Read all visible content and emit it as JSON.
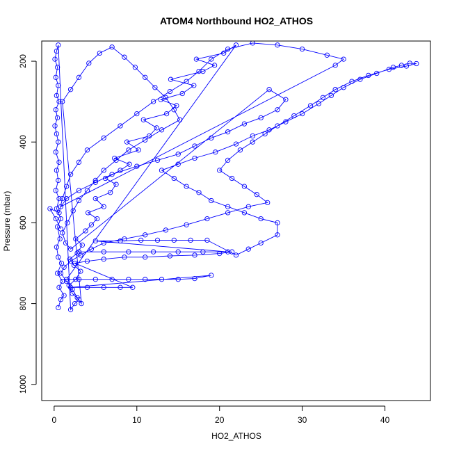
{
  "chart_data": {
    "type": "line",
    "title": "ATOM4 Northbound HO2_ATHOS",
    "xlabel": "HO2_ATHOS",
    "ylabel": "Pressure (mbar)",
    "xlim": [
      -1.5,
      45.5
    ],
    "ylim": [
      1040,
      150
    ],
    "y_reversed": true,
    "grid": false,
    "legend": "none",
    "x_ticks": [
      0,
      10,
      20,
      30,
      40
    ],
    "y_ticks": [
      200,
      400,
      600,
      800,
      1000
    ],
    "series_color": "#0000ff",
    "marker": "open-circle",
    "line_style": "line-with-points",
    "series": [
      {
        "name": "",
        "values": [
          [
            0.5,
            810
          ],
          [
            0.8,
            790
          ],
          [
            1.2,
            780
          ],
          [
            0.6,
            760
          ],
          [
            1.0,
            745
          ],
          [
            0.4,
            725
          ],
          [
            0.9,
            700
          ],
          [
            0.5,
            685
          ],
          [
            0.3,
            660
          ],
          [
            0.7,
            640
          ],
          [
            0.4,
            610
          ],
          [
            0.8,
            590
          ],
          [
            0.3,
            565
          ],
          [
            0.6,
            540
          ],
          [
            0.2,
            520
          ],
          [
            0.5,
            495
          ],
          [
            0.3,
            470
          ],
          [
            0.6,
            450
          ],
          [
            0.2,
            425
          ],
          [
            0.5,
            400
          ],
          [
            0.3,
            380
          ],
          [
            0.1,
            360
          ],
          [
            0.4,
            340
          ],
          [
            0.2,
            320
          ],
          [
            0.6,
            300
          ],
          [
            0.3,
            285
          ],
          [
            0.5,
            260
          ],
          [
            0.2,
            240
          ],
          [
            0.4,
            215
          ],
          [
            0.1,
            195
          ],
          [
            0.3,
            175
          ],
          [
            0.5,
            160
          ],
          [
            2.0,
            815
          ],
          [
            2.5,
            800
          ],
          [
            3.0,
            790
          ],
          [
            2.2,
            775
          ],
          [
            1.8,
            755
          ],
          [
            2.6,
            740
          ],
          [
            3.2,
            720
          ],
          [
            2.4,
            705
          ],
          [
            1.9,
            690
          ],
          [
            2.8,
            675
          ],
          [
            3.4,
            655
          ],
          [
            2.6,
            640
          ],
          [
            3.8,
            620
          ],
          [
            4.5,
            605
          ],
          [
            5.2,
            590
          ],
          [
            4.1,
            575
          ],
          [
            6.0,
            560
          ],
          [
            5.0,
            540
          ],
          [
            6.8,
            525
          ],
          [
            7.5,
            505
          ],
          [
            6.2,
            490
          ],
          [
            8.0,
            470
          ],
          [
            9.1,
            455
          ],
          [
            7.3,
            440
          ],
          [
            10.2,
            420
          ],
          [
            8.8,
            400
          ],
          [
            11.5,
            385
          ],
          [
            12.4,
            365
          ],
          [
            10.8,
            345
          ],
          [
            13.6,
            330
          ],
          [
            14.8,
            310
          ],
          [
            12.9,
            295
          ],
          [
            15.5,
            280
          ],
          [
            16.9,
            260
          ],
          [
            14.1,
            245
          ],
          [
            18.0,
            225
          ],
          [
            19.4,
            210
          ],
          [
            17.2,
            195
          ],
          [
            20.5,
            180
          ],
          [
            22.0,
            160
          ],
          [
            1.5,
            740
          ],
          [
            3.0,
            740
          ],
          [
            5.0,
            740
          ],
          [
            7.0,
            740
          ],
          [
            9.0,
            740
          ],
          [
            11.0,
            740
          ],
          [
            13.0,
            740
          ],
          [
            15.0,
            740
          ],
          [
            17.0,
            738
          ],
          [
            19.0,
            730
          ],
          [
            2.0,
            760
          ],
          [
            4.0,
            760
          ],
          [
            6.0,
            760
          ],
          [
            8.0,
            760
          ],
          [
            9.5,
            760
          ],
          [
            2.5,
            700
          ],
          [
            4.0,
            695
          ],
          [
            6.0,
            690
          ],
          [
            8.5,
            685
          ],
          [
            11.0,
            685
          ],
          [
            14.0,
            682
          ],
          [
            17.0,
            680
          ],
          [
            20.0,
            676
          ],
          [
            21.5,
            672
          ],
          [
            3.0,
            672
          ],
          [
            6.0,
            672
          ],
          [
            9.0,
            672
          ],
          [
            12.0,
            672
          ],
          [
            15.0,
            672
          ],
          [
            18.0,
            672
          ],
          [
            21.0,
            672
          ],
          [
            5.0,
            645
          ],
          [
            8.0,
            645
          ],
          [
            10.5,
            643
          ],
          [
            12.5,
            643
          ],
          [
            14.5,
            643
          ],
          [
            16.5,
            643
          ],
          [
            18.5,
            643
          ],
          [
            22.0,
            680
          ],
          [
            23.5,
            665
          ],
          [
            25.0,
            650
          ],
          [
            27.0,
            630
          ],
          [
            27.0,
            600
          ],
          [
            25.0,
            590
          ],
          [
            23.0,
            575
          ],
          [
            21.0,
            560
          ],
          [
            19.0,
            545
          ],
          [
            17.5,
            525
          ],
          [
            16.0,
            510
          ],
          [
            14.5,
            490
          ],
          [
            13.0,
            470
          ],
          [
            15.0,
            455
          ],
          [
            17.0,
            440
          ],
          [
            19.5,
            425
          ],
          [
            22.0,
            405
          ],
          [
            24.0,
            385
          ],
          [
            26.0,
            370
          ],
          [
            28.0,
            350
          ],
          [
            30.0,
            330
          ],
          [
            32.0,
            305
          ],
          [
            33.5,
            285
          ],
          [
            35.0,
            265
          ],
          [
            37.0,
            245
          ],
          [
            39.0,
            230
          ],
          [
            41.0,
            215
          ],
          [
            42.0,
            210
          ],
          [
            43.0,
            205
          ],
          [
            43.8,
            206
          ],
          [
            42.6,
            212
          ],
          [
            40.5,
            220
          ],
          [
            38.0,
            235
          ],
          [
            36.0,
            250
          ],
          [
            34.0,
            270
          ],
          [
            32.5,
            290
          ],
          [
            31.0,
            310
          ],
          [
            29.0,
            335
          ],
          [
            27.0,
            360
          ],
          [
            25.5,
            380
          ],
          [
            24.0,
            400
          ],
          [
            22.5,
            420
          ],
          [
            21.0,
            445
          ],
          [
            20.0,
            470
          ],
          [
            21.5,
            490
          ],
          [
            23.0,
            510
          ],
          [
            24.5,
            530
          ],
          [
            25.8,
            550
          ],
          [
            23.5,
            560
          ],
          [
            21.0,
            575
          ],
          [
            18.5,
            590
          ],
          [
            16.0,
            605
          ],
          [
            13.5,
            618
          ],
          [
            11.0,
            630
          ],
          [
            8.5,
            640
          ],
          [
            6.0,
            650
          ],
          [
            4.5,
            665
          ],
          [
            3.2,
            680
          ],
          [
            2.0,
            695
          ],
          [
            1.2,
            710
          ],
          [
            0.8,
            725
          ],
          [
            1.5,
            745
          ],
          [
            2.2,
            765
          ],
          [
            2.8,
            785
          ],
          [
            3.3,
            800
          ],
          [
            1.0,
            300
          ],
          [
            2.0,
            270
          ],
          [
            3.0,
            240
          ],
          [
            4.2,
            205
          ],
          [
            5.5,
            180
          ],
          [
            7.0,
            165
          ],
          [
            8.5,
            190
          ],
          [
            9.8,
            215
          ],
          [
            11.0,
            240
          ],
          [
            12.2,
            265
          ],
          [
            13.5,
            290
          ],
          [
            14.5,
            320
          ],
          [
            15.2,
            345
          ],
          [
            13.0,
            370
          ],
          [
            11.0,
            395
          ],
          [
            9.0,
            420
          ],
          [
            7.5,
            445
          ],
          [
            6.0,
            470
          ],
          [
            5.0,
            495
          ],
          [
            4.0,
            520
          ],
          [
            3.0,
            545
          ],
          [
            2.3,
            570
          ],
          [
            1.6,
            600
          ],
          [
            1.0,
            625
          ],
          [
            1.4,
            650
          ],
          [
            2.0,
            665
          ],
          [
            26.0,
            270
          ],
          [
            28.0,
            295
          ],
          [
            27.0,
            320
          ],
          [
            25.0,
            340
          ],
          [
            23.0,
            355
          ],
          [
            21.0,
            375
          ],
          [
            19.0,
            390
          ],
          [
            17.0,
            410
          ],
          [
            15.0,
            430
          ],
          [
            12.5,
            445
          ],
          [
            10.0,
            460
          ],
          [
            7.0,
            480
          ],
          [
            5.0,
            500
          ],
          [
            3.0,
            520
          ],
          [
            1.5,
            540
          ],
          [
            0.8,
            560
          ],
          [
            34.0,
            210
          ],
          [
            35.0,
            195
          ],
          [
            33.0,
            185
          ],
          [
            30.0,
            170
          ],
          [
            27.0,
            160
          ],
          [
            24.0,
            155
          ],
          [
            21.0,
            170
          ],
          [
            19.0,
            195
          ],
          [
            17.5,
            225
          ],
          [
            16.0,
            250
          ],
          [
            14.0,
            275
          ],
          [
            12.0,
            300
          ],
          [
            10.0,
            330
          ],
          [
            8.0,
            360
          ],
          [
            6.0,
            390
          ],
          [
            4.0,
            420
          ],
          [
            3.0,
            450
          ],
          [
            2.0,
            480
          ],
          [
            1.5,
            510
          ],
          [
            1.0,
            540
          ],
          [
            0.6,
            575
          ],
          [
            -0.5,
            565
          ],
          [
            0.2,
            590
          ],
          [
            0.8,
            615
          ]
        ]
      }
    ]
  }
}
